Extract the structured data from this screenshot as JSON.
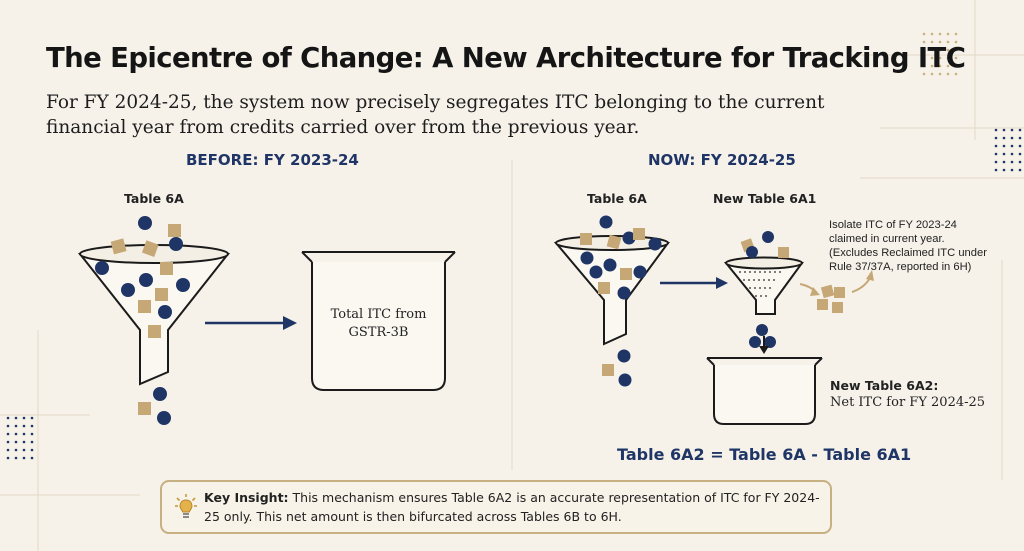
{
  "title": "The Epicentre of Change: A New Architecture for Tracking ITC",
  "subtitle": "For FY 2024-25, the system now precisely segregates ITC belonging to the current financial year from credits carried over from the previous year.",
  "before": {
    "heading": "BEFORE: FY 2023-24",
    "funnel_label": "Table 6A",
    "box_line1": "Total ITC from",
    "box_line2": "GSTR-3B"
  },
  "now": {
    "heading": "NOW: FY 2024-25",
    "funnel_label": "Table 6A",
    "filter_label": "New Table 6A1",
    "note_line1": "Isolate ITC of FY 2023-24",
    "note_line2": "claimed in current year.",
    "note_line3": "(Excludes Reclaimed ITC under",
    "note_line4": "Rule 37/37A, reported in 6H)",
    "result_label": "New Table 6A2:",
    "result_value": "Net ITC for FY 2024-25",
    "formula": "Table 6A2 = Table 6A - Table 6A1"
  },
  "insight": {
    "lead": "Key Insight:",
    "text": " This mechanism ensures Table 6A2 is an accurate representation of ITC for FY 2024-25 only. This net amount is then bifurcated across Tables 6B to 6H."
  },
  "colors": {
    "navy": "#1f3566",
    "tan": "#c6a776",
    "accent_gold": "#c7b081",
    "background": "#f6f2ea"
  },
  "icons": {
    "insight": "lightbulb-icon"
  }
}
